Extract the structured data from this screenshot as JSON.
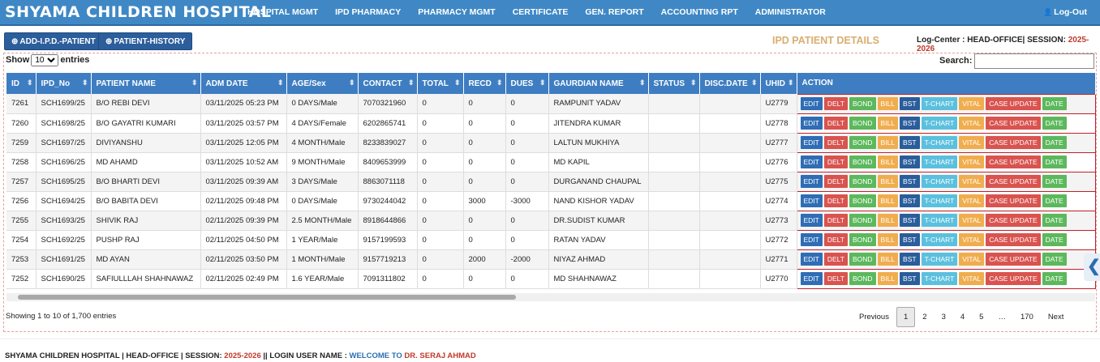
{
  "header": {
    "brand": "SHYAMA CHILDREN HOSPITAL",
    "nav": [
      "HOSPITAL MGMT",
      "IPD PHARMACY",
      "PHARMACY MGMT",
      "CERTIFICATE",
      "GEN. REPORT",
      "ACCOUNTING RPT",
      "ADMINISTRATOR"
    ],
    "logout": "Log-Out"
  },
  "toolbar": {
    "buttons": [
      "ADD-I.P.D.-PATIENT",
      "PATIENT-HISTORY"
    ],
    "title": "IPD PATIENT DETAILS",
    "log_center": "Log-Center : HEAD-OFFICE| SESSION:",
    "session": "2025-2026"
  },
  "controls": {
    "show": "Show",
    "page_size": "10",
    "entries": "entries",
    "search": "Search:"
  },
  "table": {
    "headers": [
      "ID",
      "IPD_No",
      "PATIENT NAME",
      "ADM DATE",
      "AGE/Sex",
      "CONTACT",
      "TOTAL",
      "RECD",
      "DUES",
      "GAURDIAN NAME",
      "STATUS",
      "DISC.DATE",
      "UHID",
      "ACTION"
    ],
    "actions": [
      "EDIT",
      "DELT",
      "BOND",
      "BILL",
      "BST",
      "T-CHART",
      "VITAL",
      "CASE UPDATE",
      "DATE"
    ],
    "rows": [
      [
        "7261",
        "SCH1699/25",
        "B/O REBI DEVI",
        "03/11/2025 05:23 PM",
        "0 DAYS/Male",
        "7070321960",
        "0",
        "0",
        "0",
        "RAMPUNIT YADAV",
        null,
        null,
        "U2779"
      ],
      [
        "7260",
        "SCH1698/25",
        "B/O GAYATRI KUMARI",
        "03/11/2025 03:57 PM",
        "4 DAYS/Female",
        "6202865741",
        "0",
        "0",
        "0",
        "JITENDRA KUMAR",
        null,
        null,
        "U2778"
      ],
      [
        "7259",
        "SCH1697/25",
        "DIVIYANSHU",
        "03/11/2025 12:05 PM",
        "4 MONTH/Male",
        "8233839027",
        "0",
        "0",
        "0",
        "LALTUN MUKHIYA",
        null,
        null,
        "U2777"
      ],
      [
        "7258",
        "SCH1696/25",
        "MD AHAMD",
        "03/11/2025 10:52 AM",
        "9 MONTH/Male",
        "8409653999",
        "0",
        "0",
        "0",
        "MD KAPIL",
        null,
        null,
        "U2776"
      ],
      [
        "7257",
        "SCH1695/25",
        "B/O BHARTI DEVI",
        "03/11/2025 09:39 AM",
        "3 DAYS/Male",
        "8863071118",
        "0",
        "0",
        "0",
        "DURGANAND CHAUPAL",
        null,
        null,
        "U2775"
      ],
      [
        "7256",
        "SCH1694/25",
        "B/O BABITA DEVI",
        "02/11/2025 09:48 PM",
        "0 DAYS/Male",
        "9730244042",
        "0",
        "3000",
        "-3000",
        "NAND KISHOR YADAV",
        null,
        null,
        "U2774"
      ],
      [
        "7255",
        "SCH1693/25",
        "SHIVIK RAJ",
        "02/11/2025 09:39 PM",
        "2.5 MONTH/Male",
        "8918644866",
        "0",
        "0",
        "0",
        "DR.SUDIST KUMAR",
        null,
        null,
        "U2773"
      ],
      [
        "7254",
        "SCH1692/25",
        "PUSHP RAJ",
        "02/11/2025 04:50 PM",
        "1 YEAR/Male",
        "9157199593",
        "0",
        "0",
        "0",
        "RATAN YADAV",
        null,
        null,
        "U2772"
      ],
      [
        "7253",
        "SCH1691/25",
        "MD AYAN",
        "02/11/2025 03:50 PM",
        "1 MONTH/Male",
        "9157719213",
        "0",
        "2000",
        "-2000",
        "NIYAZ AHMAD",
        null,
        null,
        "U2771"
      ],
      [
        "7252",
        "SCH1690/25",
        "SAFIULLLAH SHAHNAWAZ",
        "02/11/2025 02:49 PM",
        "1.6 YEAR/Male",
        "7091311802",
        "0",
        "0",
        "0",
        "MD SHAHNAWAZ",
        null,
        null,
        "U2770"
      ]
    ]
  },
  "pagination": {
    "info": "Showing 1 to 10 of 1,700 entries",
    "pages": [
      "Previous",
      "1",
      "2",
      "3",
      "4",
      "5",
      "…",
      "170",
      "Next"
    ],
    "current": 1
  },
  "footer": {
    "left": "SHYAMA CHILDREN HOSPITAL | HEAD-OFFICE | SESSION:",
    "session": "2025-2026",
    "middle": "|| LOGIN USER NAME :",
    "welcome": "WELCOME TO",
    "user": "DR. SERAJ AHMAD"
  }
}
